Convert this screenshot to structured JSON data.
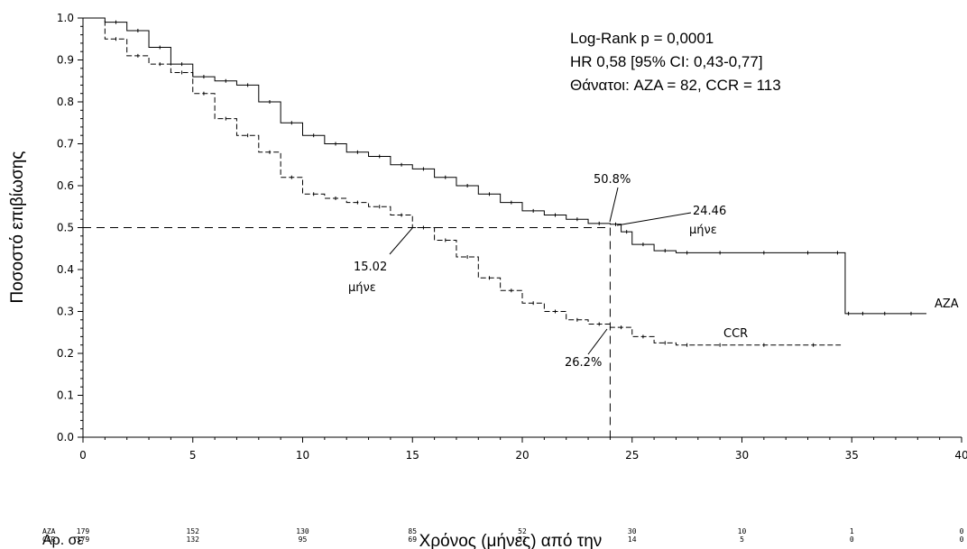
{
  "chart_data": {
    "type": "line",
    "title": "",
    "xlabel": "Χρόνος (μήνες) από την",
    "ylabel": "Ποσοστό επιβίωσης",
    "xlim": [
      0,
      40
    ],
    "ylim": [
      0,
      1
    ],
    "xticks": [
      "0",
      "5",
      "10",
      "15",
      "20",
      "25",
      "30",
      "35",
      "40"
    ],
    "yticks": [
      "0.0",
      "0.1",
      "0.2",
      "0.3",
      "0.4",
      "0.5",
      "0.6",
      "0.7",
      "0.8",
      "0.9",
      "1.0"
    ],
    "series": [
      {
        "name": "AZA",
        "style": "solid",
        "x": [
          0,
          1,
          2,
          3,
          4,
          5,
          6,
          7,
          8,
          9,
          10,
          11,
          12,
          13,
          14,
          15,
          16,
          17,
          18,
          19,
          20,
          21,
          22,
          23,
          24,
          24.5,
          25,
          26,
          27,
          28,
          30,
          32,
          34,
          34.7,
          35,
          36,
          37,
          38.4
        ],
        "y": [
          1.0,
          0.99,
          0.97,
          0.93,
          0.89,
          0.86,
          0.85,
          0.84,
          0.8,
          0.75,
          0.72,
          0.7,
          0.68,
          0.67,
          0.65,
          0.64,
          0.62,
          0.6,
          0.58,
          0.56,
          0.54,
          0.53,
          0.52,
          0.51,
          0.508,
          0.49,
          0.46,
          0.445,
          0.44,
          0.44,
          0.44,
          0.44,
          0.44,
          0.295,
          0.295,
          0.295,
          0.295,
          0.295
        ]
      },
      {
        "name": "CCR",
        "style": "dashed",
        "x": [
          0,
          1,
          2,
          3,
          4,
          5,
          6,
          7,
          8,
          9,
          10,
          11,
          12,
          13,
          14,
          15,
          16,
          17,
          18,
          19,
          20,
          21,
          22,
          23,
          24,
          25,
          26,
          27,
          28,
          30,
          32,
          34.5
        ],
        "y": [
          1.0,
          0.95,
          0.91,
          0.89,
          0.87,
          0.82,
          0.76,
          0.72,
          0.68,
          0.62,
          0.58,
          0.57,
          0.56,
          0.55,
          0.53,
          0.5,
          0.47,
          0.43,
          0.38,
          0.35,
          0.32,
          0.3,
          0.28,
          0.27,
          0.262,
          0.24,
          0.225,
          0.22,
          0.22,
          0.22,
          0.22,
          0.22
        ]
      }
    ],
    "reference": {
      "median_y": 0.5,
      "x_at": 24
    },
    "annotations": {
      "aza_at_24": "50.8%",
      "ccr_at_24": "26.2%",
      "aza_median": "24.46",
      "aza_median_unit": "μήνε",
      "ccr_median": "15.02",
      "ccr_median_unit": "μήνε",
      "aza_label": "AZA",
      "ccr_label": "CCR"
    },
    "stats": {
      "line1": "Log-Rank p = 0,0001",
      "line2": "HR 0,58 [95% CI: 0,43-0,77]",
      "line3": "Θάνατοι: AZA = 82, CCR = 113"
    },
    "at_risk": {
      "header": "Αρ. σε",
      "times": [
        0,
        5,
        10,
        15,
        20,
        25,
        30,
        35,
        40
      ],
      "rows": [
        {
          "name": "AZA",
          "values": [
            "179",
            "152",
            "130",
            "85",
            "52",
            "30",
            "10",
            "1",
            "0"
          ]
        },
        {
          "name": "CCR",
          "values": [
            "179",
            "132",
            "95",
            "69",
            "32",
            "14",
            "5",
            "0",
            "0"
          ]
        }
      ]
    }
  }
}
